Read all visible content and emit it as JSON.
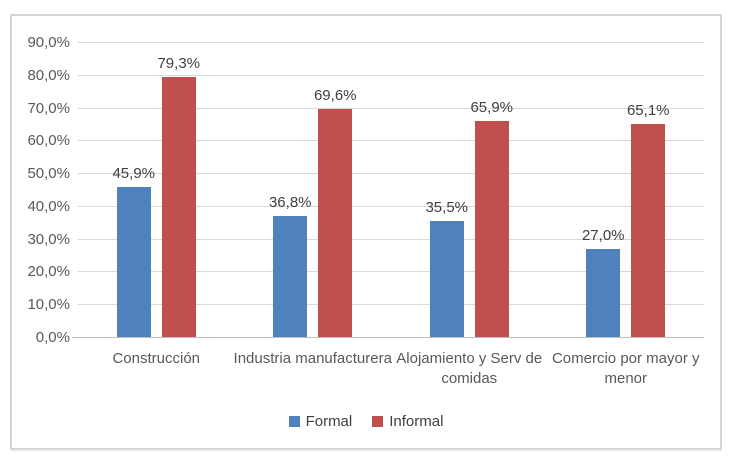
{
  "chart_data": {
    "type": "bar",
    "title": "",
    "xlabel": "",
    "ylabel": "",
    "categories": [
      "Construcción",
      "Industria manufacturera",
      "Alojamiento y Serv de comidas",
      "Comercio por mayor y menor"
    ],
    "series": [
      {
        "name": "Formal",
        "color": "#4F81BD",
        "values": [
          45.9,
          36.8,
          35.5,
          27.0
        ],
        "labels": [
          "45,9%",
          "36,8%",
          "35,5%",
          "27,0%"
        ]
      },
      {
        "name": "Informal",
        "color": "#C0504D",
        "values": [
          79.3,
          69.6,
          65.9,
          65.1
        ],
        "labels": [
          "79,3%",
          "69,6%",
          "65,9%",
          "65,1%"
        ]
      }
    ],
    "ylim": [
      0,
      90
    ],
    "yticks": [
      {
        "value": 0,
        "label": "0,0%"
      },
      {
        "value": 10,
        "label": "10,0%"
      },
      {
        "value": 20,
        "label": "20,0%"
      },
      {
        "value": 30,
        "label": "30,0%"
      },
      {
        "value": 40,
        "label": "40,0%"
      },
      {
        "value": 50,
        "label": "50,0%"
      },
      {
        "value": 60,
        "label": "60,0%"
      },
      {
        "value": 70,
        "label": "70,0%"
      },
      {
        "value": 80,
        "label": "80,0%"
      },
      {
        "value": 90,
        "label": "90,0%"
      }
    ],
    "grid": true,
    "legend_position": "bottom",
    "colors": {
      "gridline": "#D9D9D9",
      "axis_line": "#BFBFBF",
      "tick_label": "#595959",
      "data_label": "#404040",
      "frame_border": "#D4D4D4",
      "background": "#FFFFFF"
    }
  }
}
